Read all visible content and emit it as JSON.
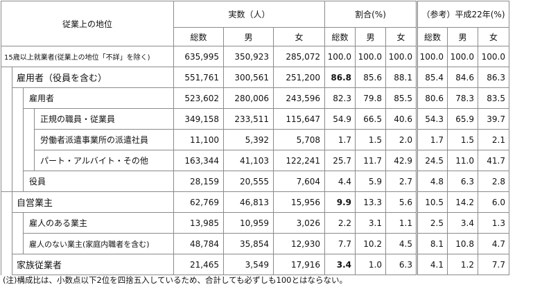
{
  "headers": {
    "status": "従業上の地位",
    "actual": "実数（人）",
    "ratio": "割合(%)",
    "ref": "（参考）平成22年(%)",
    "total": "総数",
    "male": "男",
    "female": "女"
  },
  "rows": [
    {
      "label": "15歳以上就業者(従業上の地位「不詳」を除く)",
      "v": [
        "635,995",
        "350,923",
        "285,072",
        "100.0",
        "100.0",
        "100.0",
        "100.0",
        "100.0",
        "100.0"
      ]
    },
    {
      "label": "雇用者（役員を含む）",
      "v": [
        "551,761",
        "300,561",
        "251,200",
        "86.8",
        "85.6",
        "88.1",
        "85.4",
        "84.6",
        "86.3"
      ]
    },
    {
      "label": "雇用者",
      "v": [
        "523,602",
        "280,006",
        "243,596",
        "82.3",
        "79.8",
        "85.5",
        "80.6",
        "78.3",
        "83.5"
      ]
    },
    {
      "label": "正規の職員・従業員",
      "v": [
        "349,158",
        "233,511",
        "115,647",
        "54.9",
        "66.5",
        "40.6",
        "54.3",
        "65.9",
        "39.7"
      ]
    },
    {
      "label": "労働者派遣事業所の派遣社員",
      "v": [
        "11,100",
        "5,392",
        "5,708",
        "1.7",
        "1.5",
        "2.0",
        "1.7",
        "1.5",
        "2.1"
      ]
    },
    {
      "label": "パート・アルバイト・その他",
      "v": [
        "163,344",
        "41,103",
        "122,241",
        "25.7",
        "11.7",
        "42.9",
        "24.5",
        "11.0",
        "41.7"
      ]
    },
    {
      "label": "役員",
      "v": [
        "28,159",
        "20,555",
        "7,604",
        "4.4",
        "5.9",
        "2.7",
        "4.8",
        "6.3",
        "2.8"
      ]
    },
    {
      "label": "自営業主",
      "v": [
        "62,769",
        "46,813",
        "15,956",
        "9.9",
        "13.3",
        "5.6",
        "10.5",
        "14.2",
        "6.0"
      ]
    },
    {
      "label": "雇人のある業主",
      "v": [
        "13,985",
        "10,959",
        "3,026",
        "2.2",
        "3.1",
        "1.1",
        "2.5",
        "3.4",
        "1.3"
      ]
    },
    {
      "label": "雇人のない業主(家庭内職者を含む)",
      "v": [
        "48,784",
        "35,854",
        "12,930",
        "7.7",
        "10.2",
        "4.5",
        "8.1",
        "10.8",
        "4.7"
      ]
    },
    {
      "label": "家族従業者",
      "v": [
        "21,465",
        "3,549",
        "17,916",
        "3.4",
        "1.0",
        "6.3",
        "4.1",
        "1.2",
        "7.7"
      ]
    }
  ],
  "note": "(注)構成比は、小数点以下2位を四捨五入しているため、合計しても必ずしも100とはならない。"
}
